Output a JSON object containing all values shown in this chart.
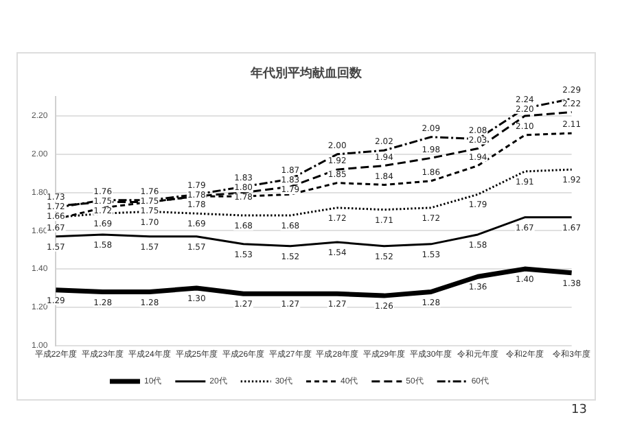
{
  "chart_data": {
    "type": "line",
    "title": "年代別平均献血回数",
    "categories": [
      "平成22年度",
      "平成23年度",
      "平成24年度",
      "平成25年度",
      "平成26年度",
      "平成27年度",
      "平成28年度",
      "平成29年度",
      "平成30年度",
      "令和元年度",
      "令和2年度",
      "令和3年度"
    ],
    "series": [
      {
        "name": "10代",
        "color": "#000000",
        "line_style": "solid",
        "values": [
          1.29,
          1.28,
          1.28,
          1.3,
          1.27,
          1.27,
          1.27,
          1.26,
          1.28,
          1.36,
          1.4,
          1.38
        ],
        "value_labels": [
          "1.29",
          "1.28",
          "1.28",
          "1.30",
          "1.27",
          "1.27",
          "1.27",
          "1.26",
          "1.28",
          "1.36",
          "1.40",
          "1.38"
        ]
      },
      {
        "name": "20代",
        "color": "#000000",
        "line_style": "solid",
        "values": [
          1.57,
          1.58,
          1.57,
          1.57,
          1.53,
          1.52,
          1.54,
          1.52,
          1.53,
          1.58,
          1.67,
          1.67
        ],
        "value_labels": [
          "1.57",
          "1.58",
          "1.57",
          "1.57",
          "1.53",
          "1.52",
          "1.54",
          "1.52",
          "1.53",
          "1.58",
          "1.67",
          "1.67"
        ]
      },
      {
        "name": "30代",
        "color": "#000000",
        "line_style": "dotted",
        "values": [
          1.67,
          1.69,
          1.7,
          1.69,
          1.68,
          1.68,
          1.72,
          1.71,
          1.72,
          1.79,
          1.91,
          1.92
        ],
        "value_labels": [
          "1.67",
          "1.69",
          "1.70",
          "1.69",
          "1.68",
          "1.68",
          "1.72",
          "1.71",
          "1.72",
          "1.79",
          "1.91",
          "1.92"
        ]
      },
      {
        "name": "40代",
        "color": "#000000",
        "line_style": "dashed",
        "values": [
          1.66,
          1.72,
          1.75,
          1.78,
          1.78,
          1.79,
          1.85,
          1.84,
          1.86,
          1.94,
          2.1,
          2.11
        ],
        "value_labels": [
          "1.66",
          "1.72",
          "1.75",
          "1.78",
          "1.78",
          "1.79",
          "1.85",
          "1.84",
          "1.86",
          "1.94",
          "2.10",
          "2.11"
        ]
      },
      {
        "name": "50代",
        "color": "#000000",
        "line_style": "dashed",
        "values": [
          1.73,
          1.75,
          1.75,
          1.78,
          1.8,
          1.83,
          1.92,
          1.94,
          1.98,
          2.03,
          2.2,
          2.22
        ],
        "value_labels": [
          "1.73",
          "1.75",
          "1.75",
          "1.78",
          "1.80",
          "1.83",
          "1.92",
          "1.94",
          "1.98",
          "2.03",
          "2.20",
          "2.22"
        ]
      },
      {
        "name": "60代",
        "color": "#000000",
        "line_style": "dashdot",
        "values": [
          1.72,
          1.76,
          1.76,
          1.79,
          1.83,
          1.87,
          2.0,
          2.02,
          2.09,
          2.08,
          2.24,
          2.29
        ],
        "value_labels": [
          "1.72",
          "1.76",
          "1.76",
          "1.79",
          "1.83",
          "1.87",
          "2.00",
          "2.02",
          "2.09",
          "2.08",
          "2.24",
          "2.29"
        ]
      }
    ],
    "ylim": [
      1.0,
      2.3
    ],
    "yticks": [
      {
        "value": 1.0,
        "label": "1.00"
      },
      {
        "value": 1.2,
        "label": "1.20"
      },
      {
        "value": 1.4,
        "label": "1.40"
      },
      {
        "value": 1.6,
        "label": "1.60"
      },
      {
        "value": 1.8,
        "label": "1.80"
      },
      {
        "value": 2.0,
        "label": "2.00"
      },
      {
        "value": 2.2,
        "label": "2.20"
      }
    ],
    "grid": "y",
    "legend": "bottom",
    "marker": "none",
    "annotations": [
      "13"
    ]
  }
}
